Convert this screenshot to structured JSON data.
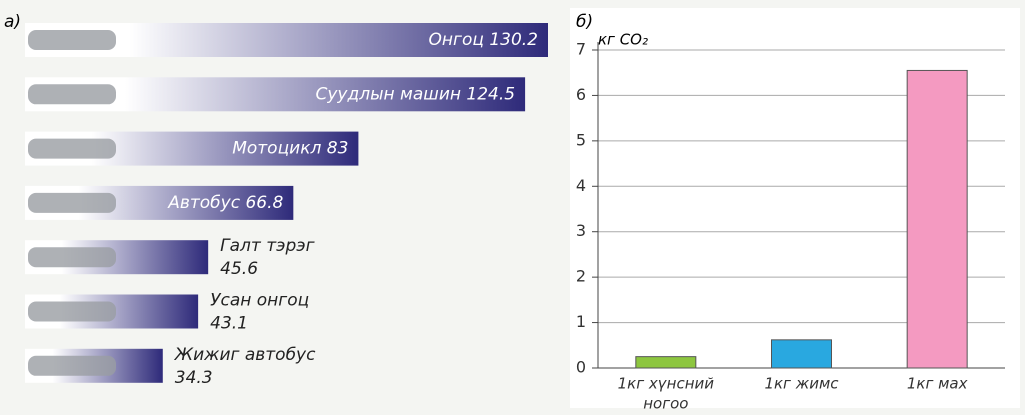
{
  "charts": [
    {
      "type": "hbar",
      "panel_label": "а)",
      "categories": [
        "Онгоц",
        "Суудлын машин",
        "Мотоцикл",
        "Автобус",
        "Галт тэрэг",
        "Усан онгоц",
        "Жижиг автобус"
      ],
      "values": [
        130.2,
        124.5,
        83,
        66.8,
        45.6,
        43.1,
        34.3
      ],
      "color": "#2e2a7a"
    },
    {
      "type": "bar",
      "panel_label": "б)",
      "ylabel": "кг CO₂",
      "categories": [
        [
          "1кг хүнсний",
          "ногоо"
        ],
        [
          "1кг жимс"
        ],
        [
          "1кг мах"
        ]
      ],
      "values": [
        0.25,
        0.62,
        6.55
      ],
      "colors": [
        "#8dc63f",
        "#29a8e0",
        "#f49ac1"
      ],
      "ylim": [
        0,
        7
      ],
      "yticks": [
        0,
        1,
        2,
        3,
        4,
        5,
        6,
        7
      ],
      "grid": true
    }
  ]
}
